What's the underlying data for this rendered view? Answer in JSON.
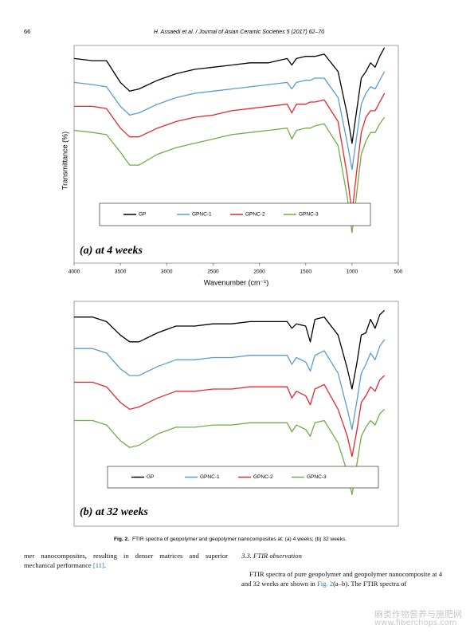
{
  "header": {
    "page": "66",
    "journal": "H. Assaedi et al. / Journal of Asian Ceramic Societies 5 (2017) 62–70"
  },
  "chart_data": [
    {
      "type": "line",
      "annotation": "(a) at 4 weeks",
      "xlabel": "Wavenumber (cm⁻¹)",
      "ylabel": "Transmittance (%)",
      "xlim": [
        4000,
        500
      ],
      "xticks": [
        4000,
        3500,
        3000,
        2500,
        2000,
        1500,
        1000,
        500
      ],
      "ylim": [
        0,
        100
      ],
      "x": [
        4000,
        3800,
        3650,
        3500,
        3400,
        3300,
        3100,
        2900,
        2700,
        2500,
        2300,
        2100,
        1900,
        1700,
        1650,
        1600,
        1500,
        1450,
        1400,
        1300,
        1150,
        1050,
        1000,
        950,
        900,
        850,
        800,
        750,
        700,
        650
      ],
      "series": [
        {
          "name": "GP",
          "color": "#000000",
          "values": [
            94,
            93,
            93,
            83,
            79,
            80,
            84,
            87,
            89,
            90,
            91,
            92,
            92,
            94,
            91,
            94,
            95,
            95,
            95,
            96,
            88,
            68,
            55,
            70,
            85,
            88,
            92,
            90,
            95,
            99
          ]
        },
        {
          "name": "GPNC-1",
          "color": "#5b9bd5",
          "values": [
            83,
            82,
            81,
            72,
            68,
            69,
            73,
            76,
            78,
            79,
            80,
            81,
            82,
            83,
            80,
            83,
            84,
            84,
            85,
            85,
            76,
            55,
            43,
            58,
            73,
            78,
            81,
            80,
            84,
            88
          ]
        },
        {
          "name": "GPNC-2",
          "color": "#e8262b",
          "values": [
            72,
            72,
            71,
            62,
            58,
            58,
            62,
            65,
            67,
            68,
            70,
            71,
            72,
            73,
            69,
            73,
            73,
            74,
            74,
            75,
            65,
            40,
            23,
            42,
            60,
            67,
            70,
            70,
            74,
            78
          ]
        },
        {
          "name": "GPNC-3",
          "color": "#70ad47",
          "values": [
            61,
            60,
            59,
            51,
            45,
            45,
            50,
            53,
            55,
            57,
            59,
            60,
            61,
            62,
            57,
            61,
            62,
            62,
            63,
            64,
            54,
            30,
            14,
            32,
            50,
            56,
            60,
            60,
            64,
            67
          ]
        }
      ]
    },
    {
      "type": "line",
      "annotation": "(b) at 32 weeks",
      "xlim": [
        4000,
        500
      ],
      "ylim": [
        0,
        100
      ],
      "x": [
        4000,
        3800,
        3650,
        3500,
        3400,
        3300,
        3100,
        2900,
        2700,
        2500,
        2300,
        2100,
        1900,
        1700,
        1650,
        1600,
        1500,
        1450,
        1400,
        1300,
        1150,
        1050,
        1000,
        950,
        900,
        850,
        800,
        750,
        700,
        650
      ],
      "series": [
        {
          "name": "GP",
          "color": "#000000",
          "values": [
            93,
            93,
            91,
            85,
            82,
            82,
            86,
            89,
            89,
            90,
            90,
            91,
            91,
            91,
            88,
            90,
            89,
            82,
            92,
            93,
            85,
            70,
            61,
            72,
            85,
            86,
            92,
            88,
            94,
            96
          ]
        },
        {
          "name": "GPNC-1",
          "color": "#5b9bd5",
          "values": [
            79,
            79,
            77,
            70,
            67,
            67,
            71,
            74,
            74,
            75,
            75,
            76,
            76,
            76,
            72,
            75,
            73,
            69,
            76,
            78,
            68,
            52,
            43,
            55,
            68,
            72,
            77,
            74,
            80,
            83
          ]
        },
        {
          "name": "GPNC-2",
          "color": "#e8262b",
          "values": [
            64,
            64,
            62,
            55,
            52,
            53,
            57,
            60,
            60,
            61,
            61,
            62,
            62,
            62,
            57,
            60,
            58,
            54,
            61,
            63,
            52,
            40,
            31,
            42,
            55,
            58,
            62,
            60,
            65,
            67
          ]
        },
        {
          "name": "GPNC-3",
          "color": "#70ad47",
          "values": [
            47,
            47,
            45,
            38,
            35,
            36,
            41,
            44,
            44,
            45,
            45,
            46,
            46,
            46,
            42,
            45,
            43,
            40,
            46,
            47,
            37,
            24,
            14,
            27,
            40,
            44,
            47,
            45,
            50,
            52
          ]
        }
      ]
    }
  ],
  "caption": {
    "label": "Fig. 2.",
    "text": "FTIR spectra of geopolymer and geopolymer nanocomposites at: (a) 4 weeks; (b) 32 weeks."
  },
  "left_paragraph": {
    "text": "mer nanocomposites, resulting in denser matrices and superior mechanical performance ",
    "ref": "[11]",
    "end": "."
  },
  "section": {
    "heading": "3.3. FTIR observation",
    "text": "FTIR spectra of pure geopolymer and geopolymer nanocomposite at 4 and 32 weeks are shown in ",
    "ref": "Fig. 2",
    "end": "(a–b). The FTIR spectra of"
  },
  "watermark": {
    "cn": "麻类作物营养与施肥网",
    "url": "www.fiberchops.com"
  }
}
